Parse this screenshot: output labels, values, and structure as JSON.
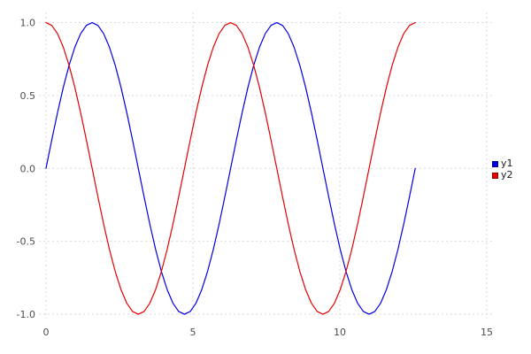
{
  "figure": {
    "background": "#ffffff",
    "tick_label_color": "#4d4d4d",
    "grid_color": "#d9d9e0"
  },
  "chart_data": {
    "type": "line",
    "title": "",
    "xlabel": "",
    "ylabel": "",
    "xlim": [
      -0.24,
      15.21
    ],
    "ylim": [
      -1.03,
      1.07
    ],
    "xticks": {
      "values": [
        0,
        5,
        10,
        15
      ],
      "labels": [
        "0",
        "5",
        "10",
        "15"
      ]
    },
    "yticks": {
      "values": [
        1.0,
        0.5,
        0.0,
        -0.5,
        -1.0
      ],
      "labels": [
        "1.0",
        "0.5",
        "0.0",
        "-0.5",
        "-1.0"
      ]
    },
    "grid": {
      "visible": true,
      "style": "dashed"
    },
    "legend": {
      "position": "right-outside"
    },
    "x_start": 0,
    "x_end": 12.566,
    "series": [
      {
        "name": "y1",
        "color": "#0000e6",
        "swatch_border": "#000099",
        "values": [
          0,
          0.195,
          0.383,
          0.556,
          0.707,
          0.831,
          0.924,
          0.981,
          1,
          0.981,
          0.924,
          0.831,
          0.707,
          0.556,
          0.383,
          0.195,
          0,
          -0.195,
          -0.383,
          -0.556,
          -0.707,
          -0.831,
          -0.924,
          -0.981,
          -1,
          -0.981,
          -0.924,
          -0.831,
          -0.707,
          -0.556,
          -0.383,
          -0.195,
          0,
          0.195,
          0.383,
          0.556,
          0.707,
          0.831,
          0.924,
          0.981,
          1,
          0.981,
          0.924,
          0.831,
          0.707,
          0.556,
          0.383,
          0.195,
          0,
          -0.195,
          -0.383,
          -0.556,
          -0.707,
          -0.831,
          -0.924,
          -0.981,
          -1,
          -0.981,
          -0.924,
          -0.831,
          -0.707,
          -0.556,
          -0.383,
          -0.195,
          0
        ]
      },
      {
        "name": "y2",
        "color": "#e60000",
        "swatch_border": "#990000",
        "values": [
          1,
          0.981,
          0.924,
          0.831,
          0.707,
          0.556,
          0.383,
          0.195,
          0,
          -0.195,
          -0.383,
          -0.556,
          -0.707,
          -0.831,
          -0.924,
          -0.981,
          -1,
          -0.981,
          -0.924,
          -0.831,
          -0.707,
          -0.556,
          -0.383,
          -0.195,
          0,
          0.195,
          0.383,
          0.556,
          0.707,
          0.831,
          0.924,
          0.981,
          1,
          0.981,
          0.924,
          0.831,
          0.707,
          0.556,
          0.383,
          0.195,
          0,
          -0.195,
          -0.383,
          -0.556,
          -0.707,
          -0.831,
          -0.924,
          -0.981,
          -1,
          -0.981,
          -0.924,
          -0.831,
          -0.707,
          -0.556,
          -0.383,
          -0.195,
          0,
          0.195,
          0.383,
          0.556,
          0.707,
          0.831,
          0.924,
          0.981,
          1
        ]
      }
    ]
  }
}
